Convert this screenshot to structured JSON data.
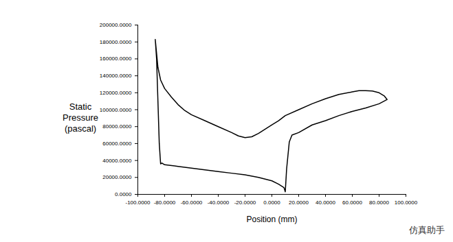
{
  "chart_data": {
    "type": "line",
    "x_label": "Position (mm)",
    "y_label": "Static Pressure (pascal)",
    "annotations": [
      "仿真助手"
    ],
    "color": "#000000",
    "grid": false,
    "xlim": [
      -100,
      100
    ],
    "ylim": [
      0,
      200000
    ],
    "xticks": [
      {
        "value": -100,
        "label": "-100.0000"
      },
      {
        "value": -80,
        "label": "-80.0000"
      },
      {
        "value": -60,
        "label": "-60.0000"
      },
      {
        "value": -40,
        "label": "-40.0000"
      },
      {
        "value": -20,
        "label": "-20.0000"
      },
      {
        "value": 0,
        "label": "0.0000"
      },
      {
        "value": 20,
        "label": "20.0000"
      },
      {
        "value": 40,
        "label": "40.0000"
      },
      {
        "value": 60,
        "label": "60.0000"
      },
      {
        "value": 80,
        "label": "80.0000"
      },
      {
        "value": 100,
        "label": "100.0000"
      }
    ],
    "yticks": [
      {
        "value": 0,
        "label": "0.0000"
      },
      {
        "value": 20000,
        "label": "20000.0000"
      },
      {
        "value": 40000,
        "label": "40000.0000"
      },
      {
        "value": 60000,
        "label": "60000.0000"
      },
      {
        "value": 80000,
        "label": "80000.0000"
      },
      {
        "value": 100000,
        "label": "100000.0000"
      },
      {
        "value": 120000,
        "label": "120000.0000"
      },
      {
        "value": 140000,
        "label": "140000.0000"
      },
      {
        "value": 160000,
        "label": "160000.0000"
      },
      {
        "value": 180000,
        "label": "180000.0000"
      },
      {
        "value": 200000,
        "label": "200000.0000"
      }
    ],
    "x": [
      -87,
      -85,
      -83,
      -80,
      -75,
      -70,
      -65,
      -60,
      -50,
      -40,
      -30,
      -25,
      -20,
      -15,
      -10,
      -5,
      0,
      5,
      10,
      20,
      30,
      40,
      50,
      60,
      65,
      70,
      75,
      80,
      84,
      86,
      80,
      70,
      60,
      50,
      40,
      30,
      20,
      15,
      13,
      11,
      10,
      9,
      5,
      0,
      -10,
      -20,
      -30,
      -40,
      -50,
      -60,
      -70,
      -80,
      -82,
      -83,
      -84,
      -85,
      -86,
      -87
    ],
    "values": [
      183000,
      150000,
      135000,
      125000,
      115000,
      106000,
      99000,
      94000,
      87000,
      80000,
      73000,
      69000,
      67000,
      68000,
      72000,
      77000,
      82000,
      87000,
      93000,
      100000,
      107000,
      113000,
      118000,
      121000,
      122500,
      122500,
      122000,
      120000,
      116000,
      112000,
      107000,
      102000,
      98000,
      93000,
      87000,
      82000,
      73000,
      70000,
      62000,
      30000,
      3000,
      8000,
      12000,
      16000,
      20000,
      23000,
      25000,
      27000,
      29000,
      31000,
      33000,
      35000,
      37000,
      36000,
      60000,
      110000,
      160000,
      183000
    ]
  }
}
